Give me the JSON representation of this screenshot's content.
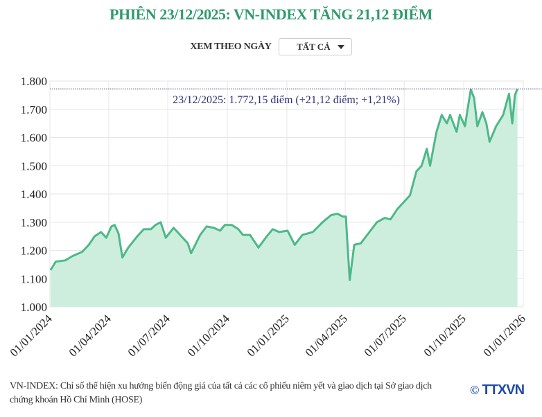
{
  "title": "PHIÊN 23/12/2025: VN-INDEX TĂNG 21,12 ĐIỂM",
  "filter": {
    "label": "XEM THEO NGÀY",
    "selected": "TẤT CẢ"
  },
  "footer": {
    "note": "VN-INDEX: Chỉ số thể hiện xu hướng biến động giá của tất cả các cổ phiếu niêm yết và giao dịch tại Sở giao dịch chứng khoán Hồ Chí Minh (HOSE)",
    "logo_text": "TTXVN",
    "copyright": "©"
  },
  "colors": {
    "title": "#2f9b6c",
    "line": "#4db88a",
    "fill": "#cdeedd",
    "annotation": "#2b2f7a"
  },
  "chart_data": {
    "type": "area",
    "title": "",
    "xlabel": "",
    "ylabel": "",
    "ylim": [
      1000,
      1800
    ],
    "xlim": [
      "2024-01-01",
      "2026-01-01"
    ],
    "grid": true,
    "yticks": [
      "1.000",
      "1.100",
      "1.200",
      "1.300",
      "1.400",
      "1.500",
      "1.600",
      "1.700",
      "1.800"
    ],
    "ytick_values": [
      1000,
      1100,
      1200,
      1300,
      1400,
      1500,
      1600,
      1700,
      1800
    ],
    "xticks": [
      "01/01/2024",
      "01/04/2024",
      "01/07/2024",
      "01/10/2024",
      "01/01/2025",
      "01/04/2025",
      "01/07/2025",
      "01/10/2025",
      "01/01/2026"
    ],
    "xtick_values": [
      "2024-01-01",
      "2024-04-01",
      "2024-07-01",
      "2024-10-01",
      "2025-01-01",
      "2025-04-01",
      "2025-07-01",
      "2025-10-01",
      "2026-01-01"
    ],
    "annotation": {
      "text": "23/12/2025: 1.772,15 điểm (+21,12 điểm; +1,21%)",
      "value": 1772.15
    },
    "x": [
      "2024-01-02",
      "2024-01-10",
      "2024-01-25",
      "2024-02-05",
      "2024-02-20",
      "2024-03-01",
      "2024-03-10",
      "2024-03-20",
      "2024-03-28",
      "2024-04-05",
      "2024-04-10",
      "2024-04-16",
      "2024-04-22",
      "2024-05-01",
      "2024-05-15",
      "2024-05-25",
      "2024-06-05",
      "2024-06-12",
      "2024-06-20",
      "2024-06-28",
      "2024-07-10",
      "2024-07-22",
      "2024-08-01",
      "2024-08-06",
      "2024-08-20",
      "2024-08-30",
      "2024-09-10",
      "2024-09-20",
      "2024-09-27",
      "2024-10-08",
      "2024-10-18",
      "2024-10-25",
      "2024-11-05",
      "2024-11-18",
      "2024-12-01",
      "2024-12-10",
      "2024-12-20",
      "2025-01-02",
      "2025-01-13",
      "2025-01-25",
      "2025-02-10",
      "2025-02-25",
      "2025-03-10",
      "2025-03-20",
      "2025-03-28",
      "2025-04-02",
      "2025-04-04",
      "2025-04-08",
      "2025-04-15",
      "2025-04-25",
      "2025-05-10",
      "2025-05-20",
      "2025-06-01",
      "2025-06-10",
      "2025-06-20",
      "2025-06-30",
      "2025-07-10",
      "2025-07-20",
      "2025-07-28",
      "2025-08-05",
      "2025-08-10",
      "2025-08-20",
      "2025-08-28",
      "2025-09-05",
      "2025-09-10",
      "2025-09-20",
      "2025-09-25",
      "2025-10-03",
      "2025-10-07",
      "2025-10-12",
      "2025-10-17",
      "2025-10-22",
      "2025-10-30",
      "2025-11-05",
      "2025-11-10",
      "2025-11-20",
      "2025-12-01",
      "2025-12-10",
      "2025-12-15",
      "2025-12-19",
      "2025-12-23"
    ],
    "values": [
      1130,
      1160,
      1165,
      1180,
      1195,
      1220,
      1250,
      1265,
      1245,
      1285,
      1290,
      1260,
      1175,
      1210,
      1250,
      1275,
      1275,
      1290,
      1300,
      1245,
      1280,
      1250,
      1225,
      1190,
      1255,
      1285,
      1280,
      1270,
      1290,
      1290,
      1275,
      1255,
      1255,
      1210,
      1250,
      1275,
      1265,
      1270,
      1220,
      1255,
      1265,
      1300,
      1325,
      1330,
      1320,
      1320,
      1240,
      1095,
      1220,
      1225,
      1270,
      1300,
      1315,
      1310,
      1345,
      1370,
      1395,
      1480,
      1500,
      1560,
      1500,
      1620,
      1680,
      1650,
      1680,
      1620,
      1680,
      1640,
      1700,
      1770,
      1740,
      1640,
      1690,
      1650,
      1585,
      1640,
      1680,
      1755,
      1650,
      1750,
      1772.15
    ]
  }
}
